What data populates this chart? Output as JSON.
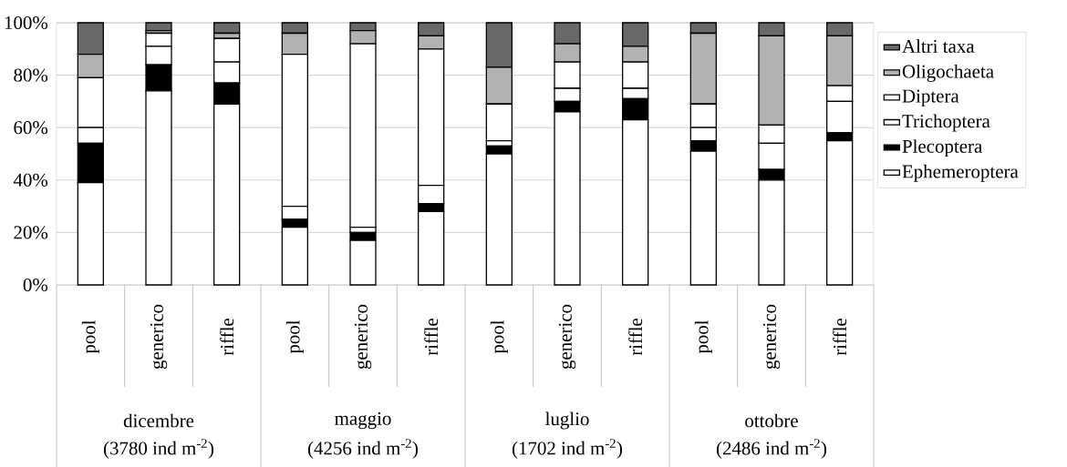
{
  "chart_data": {
    "type": "bar",
    "stacked": true,
    "categories": [
      "pool",
      "generico",
      "riffle",
      "pool",
      "generico",
      "riffle",
      "pool",
      "generico",
      "riffle",
      "pool",
      "generico",
      "riffle"
    ],
    "series": [
      {
        "name": "Ephemeroptera",
        "color": "#ffffff",
        "values": [
          39,
          74,
          69,
          22,
          17,
          28,
          50,
          66,
          63,
          51,
          40,
          55
        ]
      },
      {
        "name": "Plecoptera",
        "color": "#000000",
        "values": [
          15,
          10,
          8,
          3,
          3,
          3,
          3,
          4,
          8,
          4,
          4,
          3
        ]
      },
      {
        "name": "Trichoptera",
        "color": "#ffffff",
        "values": [
          6,
          7,
          8,
          5,
          2,
          7,
          2,
          5,
          4,
          5,
          10,
          12
        ]
      },
      {
        "name": "Diptera",
        "color": "#ffffff",
        "values": [
          19,
          5,
          9,
          58,
          70,
          52,
          14,
          10,
          10,
          9,
          7,
          6
        ]
      },
      {
        "name": "Oligochaeta",
        "color": "#b2b2b2",
        "values": [
          9,
          1,
          2,
          8,
          5,
          5,
          14,
          7,
          6,
          27,
          34,
          19
        ]
      },
      {
        "name": "Altri taxa",
        "color": "#696969",
        "values": [
          12,
          3,
          4,
          4,
          3,
          5,
          17,
          8,
          9,
          4,
          5,
          5
        ]
      }
    ],
    "ylim": [
      0,
      100
    ],
    "yticks": [
      {
        "value": 0,
        "label": "0%"
      },
      {
        "value": 20,
        "label": "20%"
      },
      {
        "value": 40,
        "label": "40%"
      },
      {
        "value": 60,
        "label": "60%"
      },
      {
        "value": 80,
        "label": "80%"
      },
      {
        "value": 100,
        "label": "100%"
      }
    ],
    "grid": "y",
    "legend": "right",
    "annotations": [
      "dicembre",
      "(3780 ind m$^{-2}$)",
      "maggio",
      "(4256 ind m$^{-2}$)",
      "luglio",
      "(1702 ind m$^{-2}$)",
      "ottobre",
      "(2486 ind m$^{-2}$)"
    ]
  }
}
